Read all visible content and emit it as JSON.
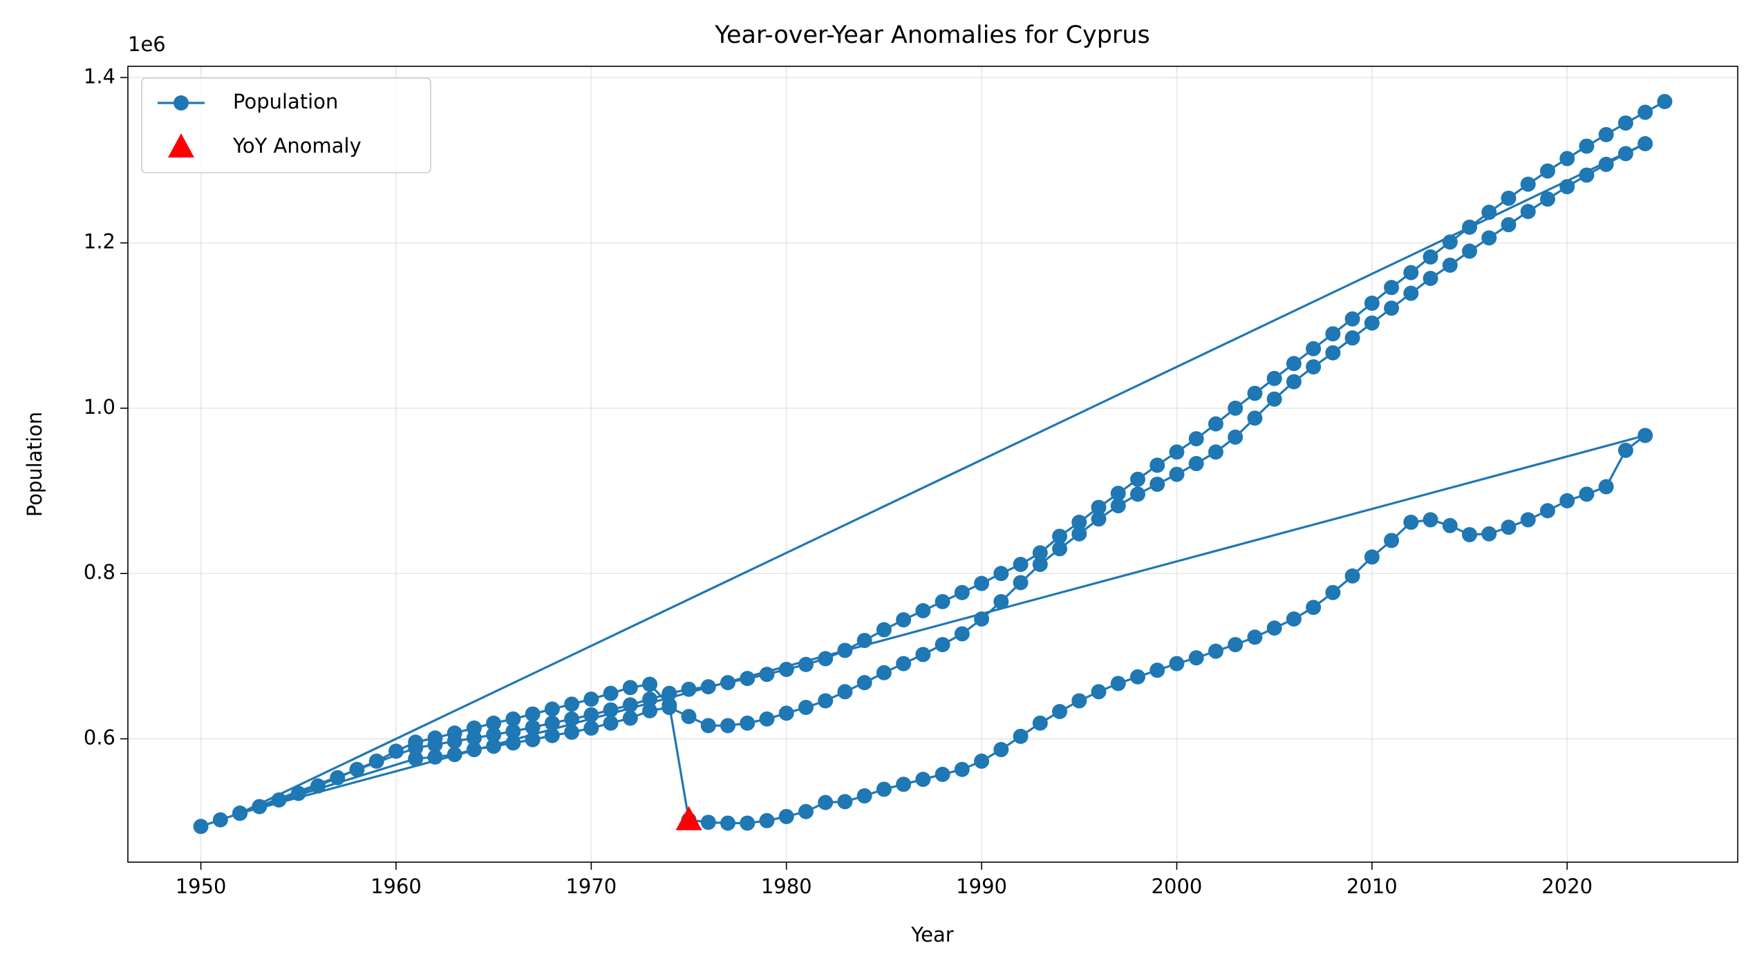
{
  "chart_data": {
    "type": "line",
    "title": "Year-over-Year Anomalies for Cyprus",
    "x_label": "Year",
    "y_label": "Population",
    "y_offset_label": "1e6",
    "xlim": [
      1946.26,
      2028.74
    ],
    "ylim": [
      450800,
      1413600
    ],
    "xticks": [
      1950,
      1960,
      1970,
      1980,
      1990,
      2000,
      2010,
      2020
    ],
    "yticks": [
      {
        "value": 600000,
        "label": "0.6"
      },
      {
        "value": 800000,
        "label": "0.8"
      },
      {
        "value": 1000000,
        "label": "1.0"
      },
      {
        "value": 1200000,
        "label": "1.2"
      },
      {
        "value": 1400000,
        "label": "1.4"
      }
    ],
    "grid": true,
    "legend": "upper left",
    "series": [
      {
        "name": "Population",
        "color": "#1f77b4",
        "marker": "circle",
        "x": [
          1950,
          1951,
          1952,
          1953,
          1954,
          1955,
          1956,
          1957,
          1958,
          1959,
          1960,
          1961,
          1962,
          1963,
          1964,
          1965,
          1966,
          1967,
          1968,
          1969,
          1970,
          1971,
          1972,
          1973,
          1974,
          1975,
          1976,
          1977,
          1978,
          1979,
          1980,
          1981,
          1982,
          1983,
          1984,
          1985,
          1986,
          1987,
          1988,
          1989,
          1990,
          1991,
          1992,
          1993,
          1994,
          1995,
          1996,
          1997,
          1998,
          1999,
          2000,
          2001,
          2002,
          2003,
          2004,
          2005,
          2006,
          2007,
          2008,
          2009,
          2010,
          2011,
          2012,
          2013,
          2014,
          2015,
          2016,
          2017,
          2018,
          2019,
          2020,
          2021,
          2022,
          2023,
          2024,
          1952,
          1961,
          1962,
          1963,
          1964,
          1965,
          1966,
          1967,
          1968,
          1969,
          1970,
          1971,
          1972,
          1973,
          1974,
          1975,
          1976,
          1977,
          1978,
          1979,
          1980,
          1981,
          1982,
          1983,
          1984,
          1985,
          1986,
          1987,
          1988,
          1989,
          1990,
          1991,
          1992,
          1993,
          1994,
          1995,
          1996,
          1997,
          1998,
          1999,
          2000,
          2001,
          2002,
          2003,
          2004,
          2005,
          2006,
          2007,
          2008,
          2009,
          2010,
          2011,
          2012,
          2013,
          2014,
          2015,
          2016,
          2017,
          2018,
          2019,
          2020,
          2021,
          2022,
          2023,
          2024,
          1952,
          1961,
          1962,
          1963,
          1964,
          1965,
          1966,
          1967,
          1968,
          1969,
          1970,
          1971,
          1972,
          1973,
          1974,
          1975,
          1976,
          1977,
          1978,
          1979,
          1980,
          1981,
          1982,
          1983,
          1984,
          1985,
          1986,
          1987,
          1988,
          1989,
          1990,
          1991,
          1992,
          1993,
          1994,
          1995,
          1996,
          1997,
          1998,
          1999,
          2000,
          2001,
          2002,
          2003,
          2004,
          2005,
          2006,
          2007,
          2008,
          2009,
          2010,
          2011,
          2012,
          2013,
          2014,
          2015,
          2016,
          2017,
          2018,
          2019,
          2020,
          2021,
          2022,
          2023,
          2024,
          2025
        ],
        "values": [
          494000,
          502000,
          510000,
          518000,
          526000,
          534000,
          543000,
          553000,
          563000,
          573000,
          585000,
          596000,
          601000,
          607000,
          613000,
          619000,
          624000,
          630000,
          636000,
          642000,
          648000,
          655000,
          662000,
          666000,
          641000,
          502000,
          499000,
          498000,
          498000,
          501000,
          506000,
          512000,
          523000,
          524000,
          531000,
          539000,
          545000,
          551000,
          557000,
          563000,
          573000,
          587000,
          603000,
          619000,
          633000,
          646000,
          657000,
          667000,
          675000,
          683000,
          691000,
          698000,
          706000,
          714000,
          723000,
          734000,
          745000,
          759000,
          777000,
          797000,
          820000,
          840000,
          862000,
          865000,
          858000,
          847000,
          848000,
          856000,
          865000,
          876000,
          888000,
          896000,
          905000,
          949000,
          967000,
          510000,
          576000,
          578000,
          581000,
          587000,
          591000,
          595000,
          599000,
          604000,
          608000,
          613000,
          619000,
          625000,
          634000,
          638000,
          627000,
          616000,
          616000,
          619000,
          624000,
          631000,
          638000,
          646000,
          657000,
          668000,
          680000,
          691000,
          702000,
          714000,
          727000,
          745000,
          766000,
          789000,
          811000,
          830000,
          848000,
          866000,
          882000,
          896000,
          908000,
          920000,
          933000,
          947000,
          965000,
          988000,
          1011000,
          1032000,
          1050000,
          1067000,
          1085000,
          1103000,
          1121000,
          1139000,
          1157000,
          1173000,
          1190000,
          1206000,
          1222000,
          1238000,
          1253000,
          1268000,
          1282000,
          1295000,
          1308000,
          1320000,
          510000,
          589000,
          593000,
          597000,
          601000,
          605000,
          609000,
          614000,
          619000,
          624000,
          629000,
          635000,
          641000,
          648000,
          655000,
          660000,
          663000,
          668000,
          673000,
          678000,
          684000,
          690000,
          697000,
          707000,
          719000,
          732000,
          744000,
          755000,
          766000,
          777000,
          788000,
          800000,
          811000,
          825000,
          845000,
          862000,
          880000,
          897000,
          914000,
          931000,
          947000,
          963000,
          981000,
          1000000,
          1018000,
          1036000,
          1054000,
          1072000,
          1090000,
          1108000,
          1127000,
          1146000,
          1164000,
          1183000,
          1201000,
          1219000,
          1237000,
          1254000,
          1271000,
          1287000,
          1302000,
          1317000,
          1331000,
          1345000,
          1358000,
          1371000
        ]
      },
      {
        "name": "YoY Anomaly",
        "color": "#ff0000",
        "marker": "triangle",
        "x": [
          1975
        ],
        "values": [
          502000
        ]
      }
    ]
  }
}
